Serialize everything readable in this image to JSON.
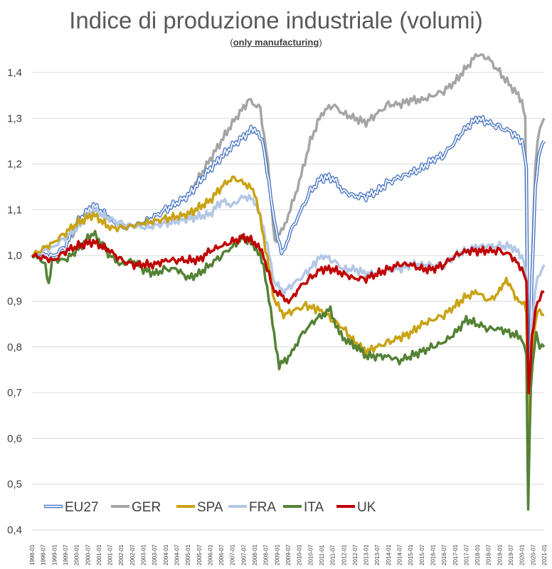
{
  "chart_data": {
    "type": "line",
    "title": "Indice di produzione industriale (volumi)",
    "subtitle_open": "(",
    "subtitle_core": "only manufacturing",
    "subtitle_close": ")",
    "xlabel": "",
    "ylabel": "",
    "ylim": [
      0.4,
      1.45
    ],
    "ytick_values": [
      0.4,
      0.5,
      0.6,
      0.7,
      0.8,
      0.9,
      1.0,
      1.1,
      1.2,
      1.3,
      1.4
    ],
    "ytick_labels": [
      "0,4",
      "0,5",
      "0,6",
      "0,7",
      "0,8",
      "0,9",
      "1,0",
      "1,1",
      "1,2",
      "1,3",
      "1,4"
    ],
    "x_start": "1998-01",
    "x_end": "2021-01",
    "xtick_labels": [
      "1998-01",
      "1998-07",
      "1999-01",
      "1999-07",
      "2000-01",
      "2000-07",
      "2001-01",
      "2001-07",
      "2002-01",
      "2002-07",
      "2003-01",
      "2003-07",
      "2004-01",
      "2004-07",
      "2005-01",
      "2005-07",
      "2006-01",
      "2006-07",
      "2007-01",
      "2007-07",
      "2008-01",
      "2008-07",
      "2009-01",
      "2009-07",
      "2010-01",
      "2010-07",
      "2011-01",
      "2011-07",
      "2012-01",
      "2012-07",
      "2013-01",
      "2013-07",
      "2014-01",
      "2014-07",
      "2015-01",
      "2015-07",
      "2016-01",
      "2016-07",
      "2017-01",
      "2017-07",
      "2018-01",
      "2018-07",
      "2019-01",
      "2019-07",
      "2020-01",
      "2020-07",
      "2021-01"
    ],
    "legend_position": "bottom-left",
    "series": [
      {
        "name": "EU27",
        "color": "#4472c4",
        "style": "double",
        "points": [
          [
            1998.0,
            1.0
          ],
          [
            1999.0,
            1.0
          ],
          [
            1999.5,
            1.02
          ],
          [
            2000.0,
            1.07
          ],
          [
            2000.75,
            1.11
          ],
          [
            2001.5,
            1.08
          ],
          [
            2002.0,
            1.06
          ],
          [
            2003.0,
            1.07
          ],
          [
            2004.0,
            1.1
          ],
          [
            2005.0,
            1.13
          ],
          [
            2006.0,
            1.19
          ],
          [
            2007.0,
            1.24
          ],
          [
            2008.0,
            1.28
          ],
          [
            2008.4,
            1.24
          ],
          [
            2008.8,
            1.1
          ],
          [
            2009.2,
            1.0
          ],
          [
            2009.6,
            1.05
          ],
          [
            2010.0,
            1.09
          ],
          [
            2010.5,
            1.14
          ],
          [
            2011.0,
            1.17
          ],
          [
            2011.5,
            1.17
          ],
          [
            2012.0,
            1.14
          ],
          [
            2012.5,
            1.13
          ],
          [
            2013.0,
            1.13
          ],
          [
            2013.5,
            1.14
          ],
          [
            2014.0,
            1.16
          ],
          [
            2014.5,
            1.17
          ],
          [
            2015.0,
            1.18
          ],
          [
            2015.5,
            1.19
          ],
          [
            2016.0,
            1.21
          ],
          [
            2016.5,
            1.22
          ],
          [
            2017.0,
            1.25
          ],
          [
            2017.5,
            1.28
          ],
          [
            2018.0,
            1.3
          ],
          [
            2018.5,
            1.29
          ],
          [
            2019.0,
            1.28
          ],
          [
            2019.5,
            1.27
          ],
          [
            2020.0,
            1.25
          ],
          [
            2020.2,
            1.2
          ],
          [
            2020.3,
            0.65
          ],
          [
            2020.45,
            0.95
          ],
          [
            2020.6,
            1.15
          ],
          [
            2020.75,
            1.22
          ],
          [
            2021.0,
            1.25
          ]
        ]
      },
      {
        "name": "GER",
        "color": "#a5a5a5",
        "style": "solid",
        "points": [
          [
            1998.0,
            1.0
          ],
          [
            1999.0,
            1.0
          ],
          [
            1999.5,
            1.02
          ],
          [
            2000.0,
            1.06
          ],
          [
            2000.75,
            1.1
          ],
          [
            2001.5,
            1.08
          ],
          [
            2002.0,
            1.06
          ],
          [
            2003.0,
            1.07
          ],
          [
            2004.0,
            1.1
          ],
          [
            2005.0,
            1.13
          ],
          [
            2006.0,
            1.21
          ],
          [
            2007.0,
            1.29
          ],
          [
            2007.75,
            1.34
          ],
          [
            2008.25,
            1.32
          ],
          [
            2008.6,
            1.2
          ],
          [
            2008.9,
            1.03
          ],
          [
            2009.2,
            1.05
          ],
          [
            2009.6,
            1.1
          ],
          [
            2010.0,
            1.16
          ],
          [
            2010.5,
            1.25
          ],
          [
            2011.0,
            1.31
          ],
          [
            2011.5,
            1.33
          ],
          [
            2012.0,
            1.31
          ],
          [
            2012.5,
            1.3
          ],
          [
            2013.0,
            1.29
          ],
          [
            2013.5,
            1.31
          ],
          [
            2014.0,
            1.33
          ],
          [
            2014.5,
            1.33
          ],
          [
            2015.0,
            1.34
          ],
          [
            2015.5,
            1.34
          ],
          [
            2016.0,
            1.35
          ],
          [
            2016.5,
            1.36
          ],
          [
            2017.0,
            1.38
          ],
          [
            2017.5,
            1.41
          ],
          [
            2018.0,
            1.44
          ],
          [
            2018.5,
            1.43
          ],
          [
            2019.0,
            1.4
          ],
          [
            2019.5,
            1.37
          ],
          [
            2020.0,
            1.34
          ],
          [
            2020.15,
            1.3
          ],
          [
            2020.3,
            0.6
          ],
          [
            2020.45,
            0.98
          ],
          [
            2020.6,
            1.2
          ],
          [
            2020.8,
            1.28
          ],
          [
            2021.0,
            1.3
          ]
        ]
      },
      {
        "name": "SPA",
        "color": "#c9a314",
        "style": "solid",
        "points": [
          [
            1998.0,
            1.0
          ],
          [
            1999.0,
            1.03
          ],
          [
            1999.5,
            1.05
          ],
          [
            2000.0,
            1.07
          ],
          [
            2000.75,
            1.09
          ],
          [
            2001.5,
            1.06
          ],
          [
            2002.0,
            1.06
          ],
          [
            2003.0,
            1.07
          ],
          [
            2004.0,
            1.08
          ],
          [
            2005.0,
            1.09
          ],
          [
            2006.0,
            1.12
          ],
          [
            2006.5,
            1.15
          ],
          [
            2007.0,
            1.17
          ],
          [
            2007.5,
            1.16
          ],
          [
            2008.0,
            1.14
          ],
          [
            2008.4,
            1.04
          ],
          [
            2008.9,
            0.9
          ],
          [
            2009.3,
            0.87
          ],
          [
            2009.8,
            0.88
          ],
          [
            2010.3,
            0.89
          ],
          [
            2011.0,
            0.88
          ],
          [
            2011.5,
            0.86
          ],
          [
            2012.0,
            0.84
          ],
          [
            2012.5,
            0.81
          ],
          [
            2013.0,
            0.79
          ],
          [
            2013.5,
            0.8
          ],
          [
            2014.0,
            0.81
          ],
          [
            2014.5,
            0.82
          ],
          [
            2015.0,
            0.83
          ],
          [
            2015.5,
            0.85
          ],
          [
            2016.0,
            0.86
          ],
          [
            2016.5,
            0.87
          ],
          [
            2017.0,
            0.89
          ],
          [
            2017.5,
            0.91
          ],
          [
            2018.0,
            0.92
          ],
          [
            2018.5,
            0.9
          ],
          [
            2019.0,
            0.92
          ],
          [
            2019.3,
            0.95
          ],
          [
            2019.7,
            0.91
          ],
          [
            2020.0,
            0.9
          ],
          [
            2020.2,
            0.88
          ],
          [
            2020.3,
            0.55
          ],
          [
            2020.45,
            0.78
          ],
          [
            2020.6,
            0.86
          ],
          [
            2020.8,
            0.88
          ],
          [
            2021.0,
            0.87
          ]
        ]
      },
      {
        "name": "FRA",
        "color": "#b4c7e7",
        "style": "solid",
        "points": [
          [
            1998.0,
            1.0
          ],
          [
            1999.0,
            1.02
          ],
          [
            1999.5,
            1.04
          ],
          [
            2000.0,
            1.06
          ],
          [
            2000.75,
            1.1
          ],
          [
            2001.5,
            1.08
          ],
          [
            2002.0,
            1.07
          ],
          [
            2003.0,
            1.06
          ],
          [
            2004.0,
            1.07
          ],
          [
            2005.0,
            1.08
          ],
          [
            2006.0,
            1.09
          ],
          [
            2006.5,
            1.12
          ],
          [
            2007.0,
            1.11
          ],
          [
            2007.5,
            1.13
          ],
          [
            2008.0,
            1.12
          ],
          [
            2008.4,
            1.06
          ],
          [
            2008.9,
            0.94
          ],
          [
            2009.3,
            0.92
          ],
          [
            2009.8,
            0.94
          ],
          [
            2010.3,
            0.96
          ],
          [
            2011.0,
            1.0
          ],
          [
            2011.5,
            0.99
          ],
          [
            2012.0,
            0.97
          ],
          [
            2012.5,
            0.97
          ],
          [
            2013.0,
            0.96
          ],
          [
            2013.5,
            0.96
          ],
          [
            2014.0,
            0.97
          ],
          [
            2014.5,
            0.97
          ],
          [
            2015.0,
            0.98
          ],
          [
            2015.5,
            0.98
          ],
          [
            2016.0,
            0.98
          ],
          [
            2016.5,
            0.98
          ],
          [
            2017.0,
            1.0
          ],
          [
            2017.5,
            1.01
          ],
          [
            2018.0,
            1.02
          ],
          [
            2018.5,
            1.02
          ],
          [
            2019.0,
            1.02
          ],
          [
            2019.5,
            1.02
          ],
          [
            2020.0,
            1.0
          ],
          [
            2020.2,
            0.96
          ],
          [
            2020.3,
            0.66
          ],
          [
            2020.45,
            0.85
          ],
          [
            2020.6,
            0.93
          ],
          [
            2020.8,
            0.96
          ],
          [
            2021.0,
            0.98
          ]
        ]
      },
      {
        "name": "ITA",
        "color": "#548235",
        "style": "solid",
        "points": [
          [
            1998.0,
            1.0
          ],
          [
            1998.4,
            0.99
          ],
          [
            1998.6,
            0.98
          ],
          [
            1998.75,
            0.94
          ],
          [
            1998.9,
            0.99
          ],
          [
            1999.5,
            0.99
          ],
          [
            2000.0,
            1.01
          ],
          [
            2000.75,
            1.05
          ],
          [
            2001.5,
            1.0
          ],
          [
            2002.0,
            0.98
          ],
          [
            2002.5,
            0.99
          ],
          [
            2003.0,
            0.97
          ],
          [
            2003.5,
            0.96
          ],
          [
            2004.0,
            0.97
          ],
          [
            2004.5,
            0.97
          ],
          [
            2005.0,
            0.95
          ],
          [
            2005.5,
            0.96
          ],
          [
            2006.0,
            0.98
          ],
          [
            2006.5,
            1.0
          ],
          [
            2007.0,
            1.02
          ],
          [
            2007.5,
            1.04
          ],
          [
            2008.0,
            1.02
          ],
          [
            2008.4,
            0.98
          ],
          [
            2008.8,
            0.85
          ],
          [
            2009.1,
            0.76
          ],
          [
            2009.6,
            0.78
          ],
          [
            2010.0,
            0.82
          ],
          [
            2010.5,
            0.85
          ],
          [
            2011.0,
            0.87
          ],
          [
            2011.4,
            0.88
          ],
          [
            2011.8,
            0.83
          ],
          [
            2012.2,
            0.81
          ],
          [
            2012.6,
            0.8
          ],
          [
            2013.0,
            0.78
          ],
          [
            2013.5,
            0.78
          ],
          [
            2014.0,
            0.78
          ],
          [
            2014.5,
            0.77
          ],
          [
            2015.0,
            0.78
          ],
          [
            2015.5,
            0.79
          ],
          [
            2016.0,
            0.8
          ],
          [
            2016.5,
            0.81
          ],
          [
            2017.0,
            0.83
          ],
          [
            2017.5,
            0.86
          ],
          [
            2018.0,
            0.85
          ],
          [
            2018.5,
            0.84
          ],
          [
            2019.0,
            0.84
          ],
          [
            2019.5,
            0.83
          ],
          [
            2020.0,
            0.82
          ],
          [
            2020.2,
            0.78
          ],
          [
            2020.28,
            0.45
          ],
          [
            2020.4,
            0.72
          ],
          [
            2020.55,
            0.8
          ],
          [
            2020.65,
            0.83
          ],
          [
            2020.8,
            0.8
          ],
          [
            2021.0,
            0.8
          ]
        ]
      },
      {
        "name": "UK",
        "color": "#c00000",
        "style": "solid",
        "points": [
          [
            1998.0,
            1.0
          ],
          [
            1999.0,
            0.99
          ],
          [
            1999.5,
            1.01
          ],
          [
            2000.0,
            1.02
          ],
          [
            2000.75,
            1.03
          ],
          [
            2001.5,
            1.01
          ],
          [
            2002.0,
            0.99
          ],
          [
            2002.5,
            0.98
          ],
          [
            2003.0,
            0.98
          ],
          [
            2003.5,
            0.98
          ],
          [
            2004.0,
            0.99
          ],
          [
            2004.5,
            0.99
          ],
          [
            2005.0,
            0.99
          ],
          [
            2005.5,
            0.99
          ],
          [
            2006.0,
            1.01
          ],
          [
            2006.5,
            1.02
          ],
          [
            2007.0,
            1.03
          ],
          [
            2007.5,
            1.04
          ],
          [
            2008.0,
            1.03
          ],
          [
            2008.4,
            1.0
          ],
          [
            2008.8,
            0.93
          ],
          [
            2009.2,
            0.91
          ],
          [
            2009.6,
            0.9
          ],
          [
            2010.0,
            0.93
          ],
          [
            2010.5,
            0.95
          ],
          [
            2011.0,
            0.97
          ],
          [
            2011.5,
            0.97
          ],
          [
            2012.0,
            0.96
          ],
          [
            2012.5,
            0.95
          ],
          [
            2013.0,
            0.95
          ],
          [
            2013.5,
            0.96
          ],
          [
            2014.0,
            0.97
          ],
          [
            2014.5,
            0.98
          ],
          [
            2015.0,
            0.98
          ],
          [
            2015.5,
            0.97
          ],
          [
            2016.0,
            0.97
          ],
          [
            2016.5,
            0.98
          ],
          [
            2017.0,
            1.0
          ],
          [
            2017.5,
            1.01
          ],
          [
            2018.0,
            1.01
          ],
          [
            2018.5,
            1.01
          ],
          [
            2019.0,
            1.01
          ],
          [
            2019.5,
            1.0
          ],
          [
            2020.0,
            0.97
          ],
          [
            2020.2,
            0.95
          ],
          [
            2020.3,
            0.69
          ],
          [
            2020.45,
            0.82
          ],
          [
            2020.6,
            0.88
          ],
          [
            2020.8,
            0.91
          ],
          [
            2021.0,
            0.92
          ]
        ]
      }
    ]
  }
}
